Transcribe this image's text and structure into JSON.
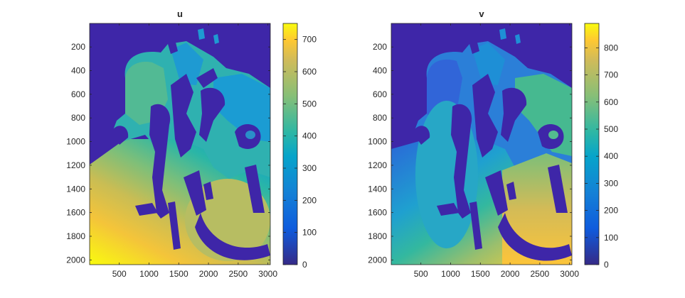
{
  "chart_data": [
    {
      "type": "heatmap",
      "title": "u",
      "xlabel": "",
      "ylabel": "",
      "x_ticks": [
        500,
        1000,
        1500,
        2000,
        2500,
        3000
      ],
      "x_tick_labels": [
        "500",
        "1000",
        "1500",
        "2000",
        "2500",
        "3000"
      ],
      "y_ticks": [
        200,
        400,
        600,
        800,
        1000,
        1200,
        1400,
        1600,
        1800,
        2000
      ],
      "y_tick_labels": [
        "200",
        "400",
        "600",
        "800",
        "1000",
        "1200",
        "1400",
        "1600",
        "1800",
        "2000"
      ],
      "xlim": [
        1,
        3040
      ],
      "ylim": [
        1,
        2040
      ],
      "y_reversed": true,
      "colormap": "parula",
      "clim": [
        0,
        750
      ],
      "colorbar": {
        "ticks": [
          0,
          100,
          200,
          300,
          400,
          500,
          600,
          700
        ],
        "tick_labels": [
          "0",
          "100",
          "200",
          "300",
          "400",
          "500",
          "600",
          "700"
        ]
      }
    },
    {
      "type": "heatmap",
      "title": "v",
      "xlabel": "",
      "ylabel": "",
      "x_ticks": [
        500,
        1000,
        1500,
        2000,
        2500,
        3000
      ],
      "x_tick_labels": [
        "500",
        "1000",
        "1500",
        "2000",
        "2500",
        "3000"
      ],
      "y_ticks": [
        200,
        400,
        600,
        800,
        1000,
        1200,
        1400,
        1600,
        1800,
        2000
      ],
      "y_tick_labels": [
        "200",
        "400",
        "600",
        "800",
        "1000",
        "1200",
        "1400",
        "1600",
        "1800",
        "2000"
      ],
      "xlim": [
        1,
        3040
      ],
      "ylim": [
        1,
        2040
      ],
      "y_reversed": true,
      "colormap": "parula",
      "clim": [
        0,
        890
      ],
      "colorbar": {
        "ticks": [
          0,
          100,
          200,
          300,
          400,
          500,
          600,
          700,
          800
        ],
        "tick_labels": [
          "0",
          "100",
          "200",
          "300",
          "400",
          "500",
          "600",
          "700",
          "800"
        ]
      }
    }
  ],
  "colors": {
    "parula_low": "#352a87",
    "parula_mid": "#21b9bd",
    "parula_high": "#f9fb0e",
    "background_region": "#3e26a8"
  }
}
